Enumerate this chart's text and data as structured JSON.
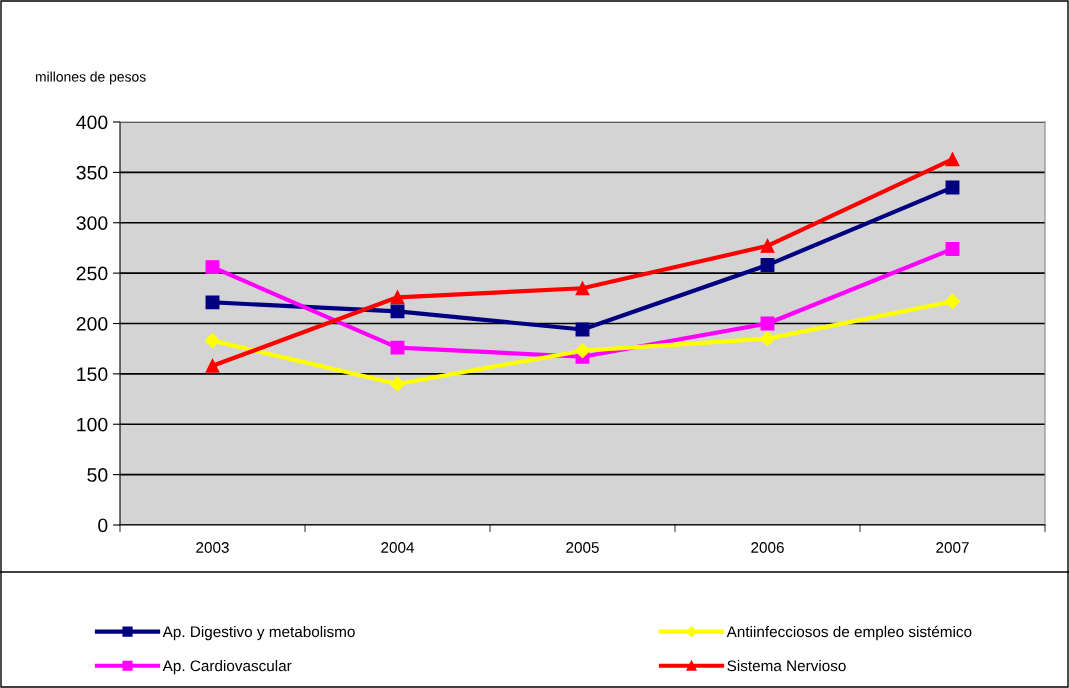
{
  "chart_data": {
    "type": "line",
    "ylabel": "millones de pesos",
    "categories": [
      "2003",
      "2004",
      "2005",
      "2006",
      "2007"
    ],
    "series": [
      {
        "name": "Ap. Digestivo y metabolismo",
        "color": "#000080",
        "marker": "square",
        "values": [
          221,
          212,
          194,
          258,
          335
        ]
      },
      {
        "name": "Ap. Cardiovascular",
        "color": "#ff00ff",
        "marker": "square",
        "values": [
          256,
          176,
          167,
          200,
          274
        ]
      },
      {
        "name": "Antiinfecciosos de empleo sistémico",
        "color": "#ffff00",
        "marker": "diamond",
        "values": [
          183,
          140,
          173,
          185,
          222
        ]
      },
      {
        "name": "Sistema Nervioso",
        "color": "#ff0000",
        "marker": "triangle",
        "values": [
          158,
          226,
          235,
          277,
          363
        ]
      }
    ],
    "ylim": [
      0,
      400
    ],
    "yticks": [
      0,
      50,
      100,
      150,
      200,
      250,
      300,
      350,
      400
    ],
    "grid": "y",
    "legend": "bottom",
    "line_style": "solid"
  }
}
